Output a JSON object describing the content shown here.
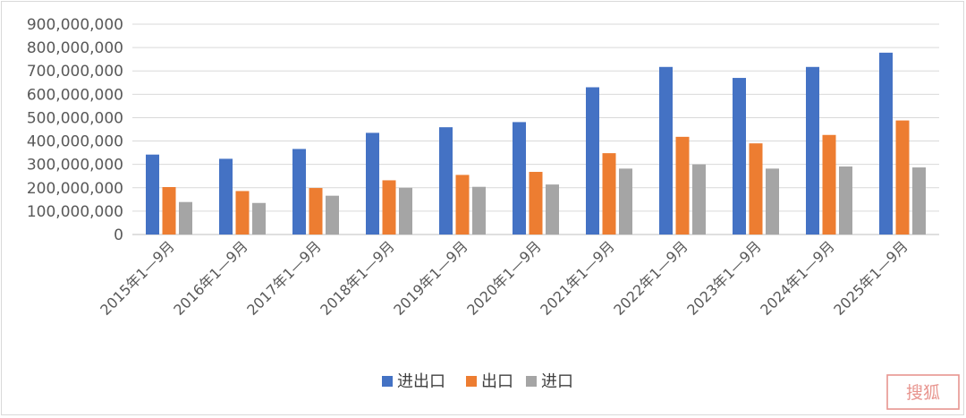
{
  "chart_data": {
    "type": "bar",
    "title": "",
    "xlabel": "",
    "ylabel": "",
    "ylim": [
      0,
      900000000
    ],
    "ytick_step": 100000000,
    "ytick_labels": [
      "0",
      "100,000,000",
      "200,000,000",
      "300,000,000",
      "400,000,000",
      "500,000,000",
      "600,000,000",
      "700,000,000",
      "800,000,000",
      "900,000,000"
    ],
    "grid": true,
    "legend_position": "bottom",
    "categories": [
      "2015年1—9月",
      "2016年1—9月",
      "2017年1—9月",
      "2018年1—9月",
      "2019年1—9月",
      "2020年1—9月",
      "2021年1—9月",
      "2022年1—9月",
      "2023年1—9月",
      "2024年1—9月",
      "2025年1—9月"
    ],
    "series": [
      {
        "name": "进出口",
        "color": "#4472c4",
        "values": [
          342000000,
          324000000,
          366000000,
          435000000,
          459000000,
          481000000,
          630000000,
          717000000,
          670000000,
          717000000,
          778000000
        ]
      },
      {
        "name": "出口",
        "color": "#ed7d31",
        "values": [
          203000000,
          186000000,
          199000000,
          232000000,
          255000000,
          268000000,
          348000000,
          418000000,
          390000000,
          426000000,
          488000000
        ]
      },
      {
        "name": "进口",
        "color": "#a5a5a5",
        "values": [
          139000000,
          135000000,
          166000000,
          200000000,
          204000000,
          214000000,
          282000000,
          300000000,
          282000000,
          291000000,
          287000000
        ]
      }
    ]
  },
  "watermark": {
    "text": "搜狐",
    "color": "#e8958f"
  }
}
